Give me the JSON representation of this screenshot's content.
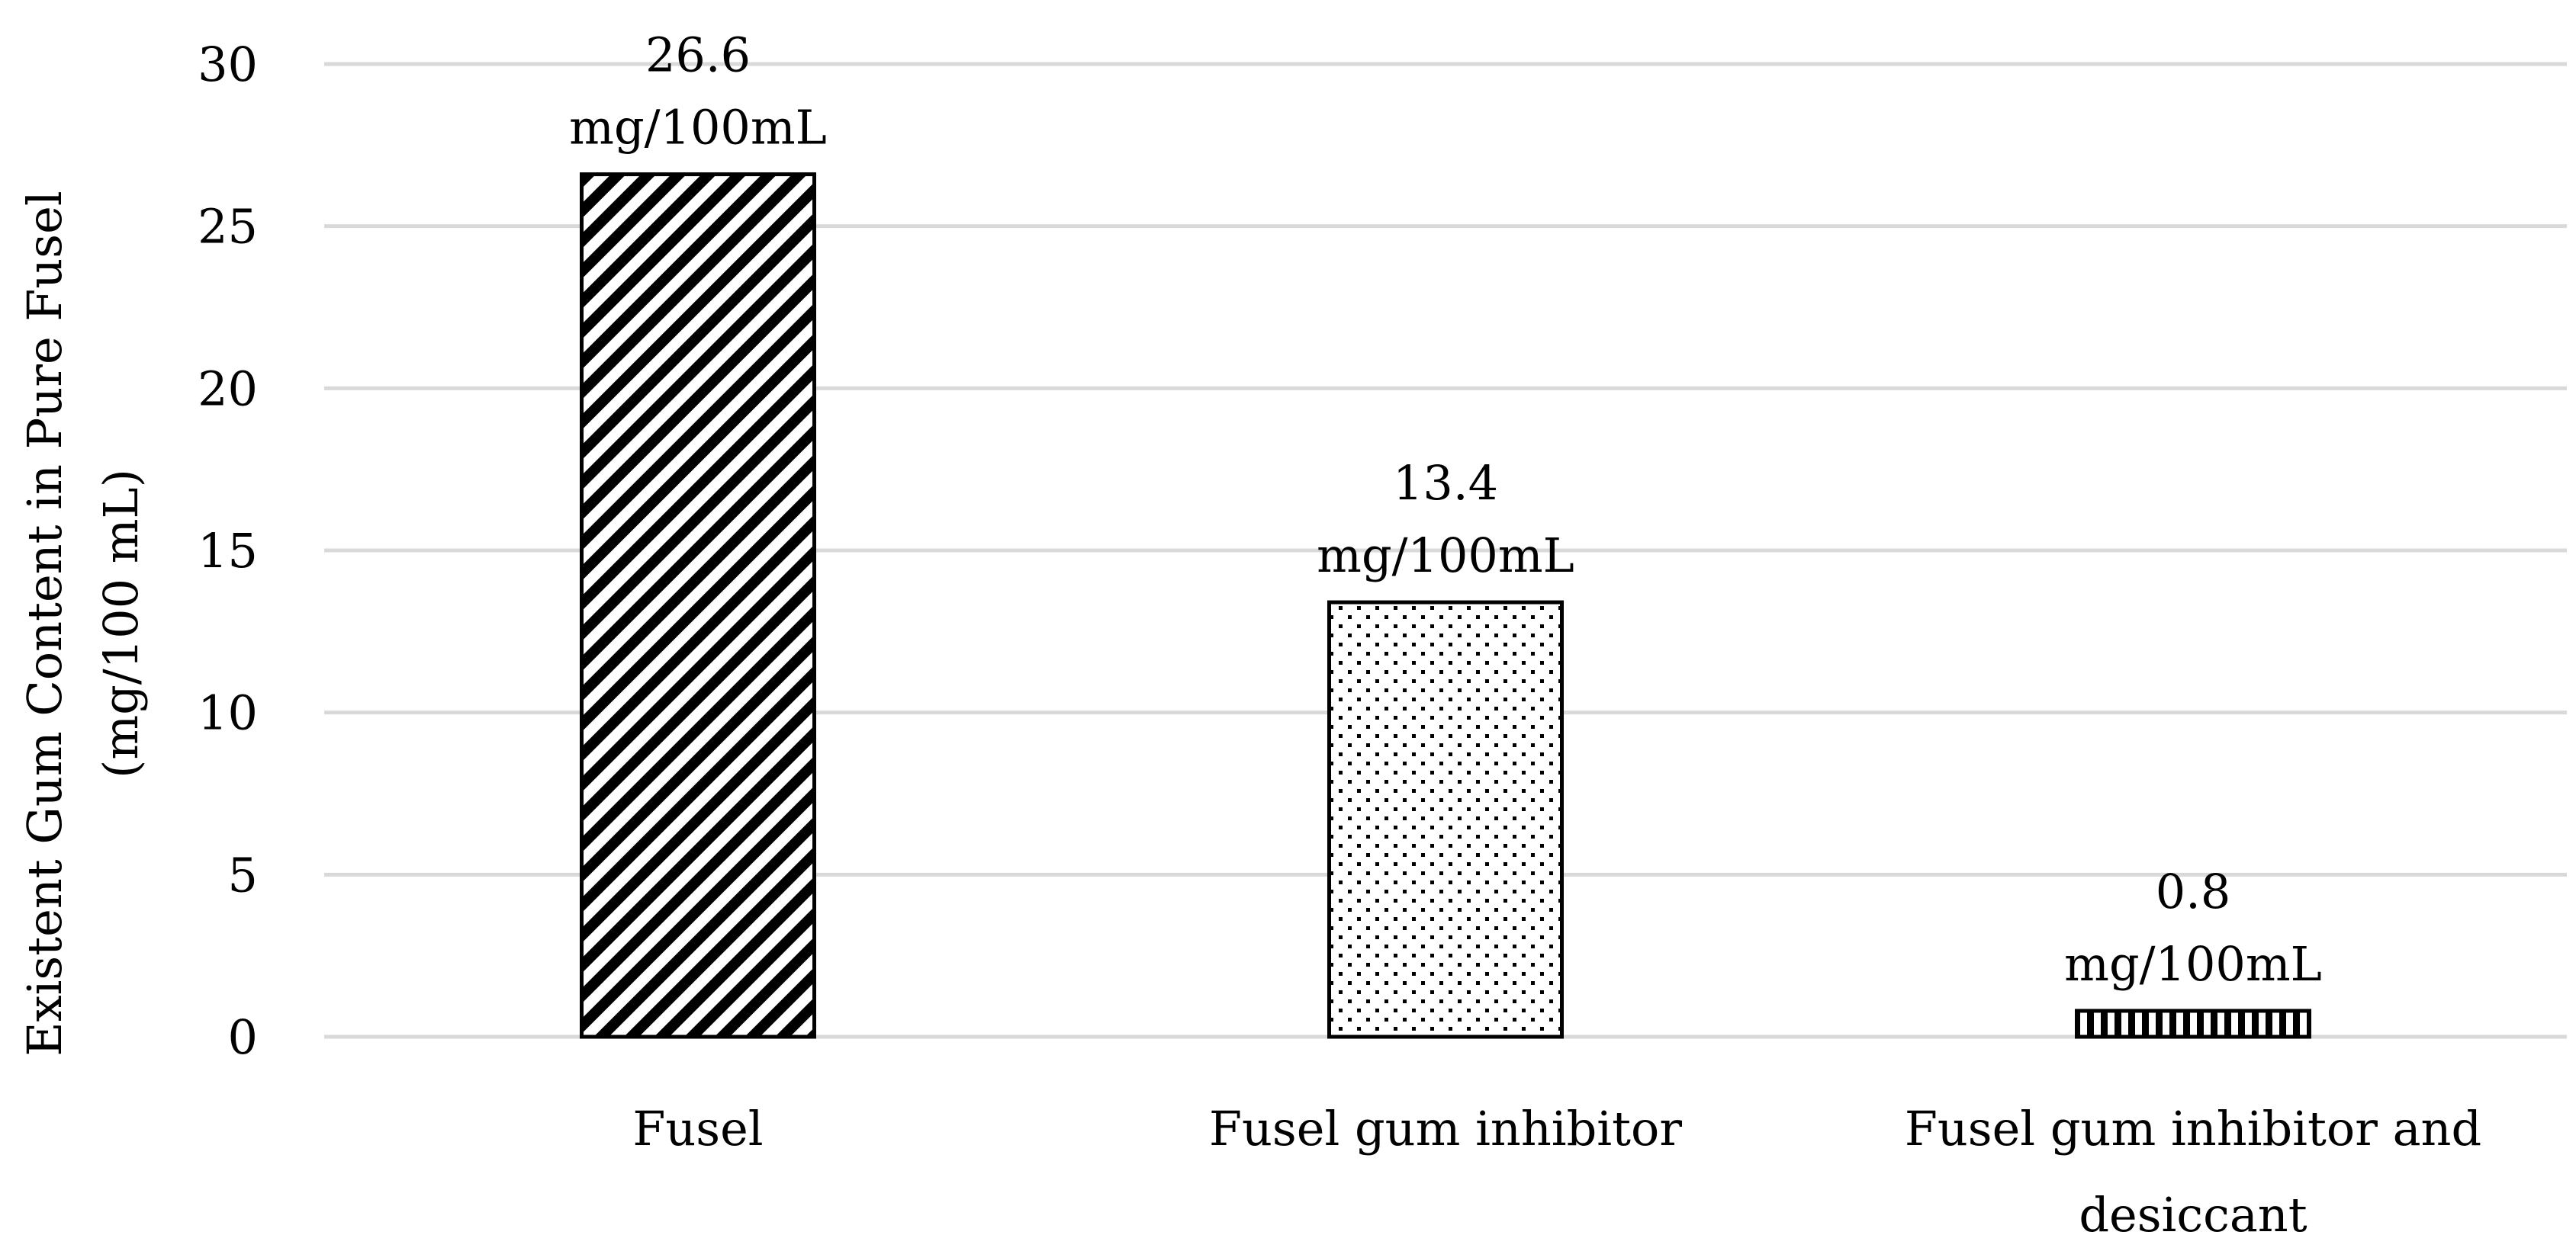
{
  "chart_data": {
    "type": "bar",
    "categories": [
      "Fusel",
      "Fusel gum inhibitor",
      "Fusel gum inhibitor and desiccant"
    ],
    "category_lines": [
      [
        "Fusel"
      ],
      [
        "Fusel gum inhibitor"
      ],
      [
        "Fusel gum inhibitor and",
        "desiccant"
      ]
    ],
    "values": [
      26.6,
      13.4,
      0.8
    ],
    "data_labels": [
      [
        "26.6",
        "mg/100mL"
      ],
      [
        "13.4",
        "mg/100mL"
      ],
      [
        "0.8",
        "mg/100mL"
      ]
    ],
    "ylabel_lines": [
      "Existent Gum Content in Pure Fusel",
      "(mg/100 mL)"
    ],
    "ylim": [
      0,
      30
    ],
    "yticks": [
      0,
      5,
      10,
      15,
      20,
      25,
      30
    ],
    "grid": true,
    "legend": false,
    "bar_patterns": [
      "diagonal-stripes",
      "dots",
      "vertical-stripes"
    ],
    "colors": {
      "bar_fill": "#ffffff",
      "bar_stroke": "#000000",
      "grid": "#d9d9d9",
      "text": "#000000"
    }
  }
}
